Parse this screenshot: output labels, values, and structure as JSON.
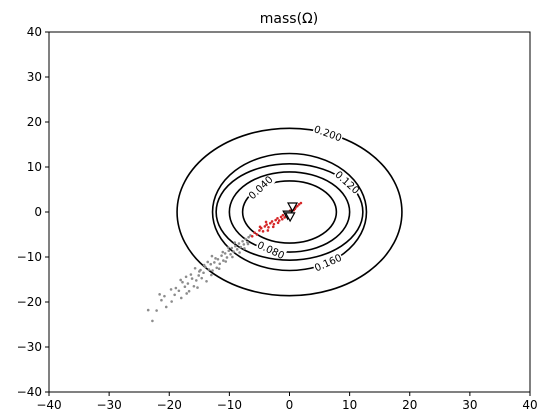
{
  "chart_data": {
    "type": "scatter",
    "title": "mass(Ω)",
    "xlabel": "",
    "ylabel": "",
    "xlim": [
      -40,
      40
    ],
    "ylim": [
      -40,
      40
    ],
    "xticks": [
      "−40",
      "−30",
      "−20",
      "−10",
      "0",
      "10",
      "20",
      "30",
      "40"
    ],
    "yticks": [
      "−40",
      "−30",
      "−20",
      "−10",
      "0",
      "10",
      "20",
      "30",
      "40"
    ],
    "grid": false,
    "contours": [
      {
        "level": "0.040",
        "rx": 7.8,
        "ry": 6.9
      },
      {
        "level": "0.080",
        "rx": 10.0,
        "ry": 8.9
      },
      {
        "level": "0.120",
        "rx": 12.2,
        "ry": 10.7
      },
      {
        "level": "0.160",
        "rx": 12.8,
        "ry": 13.0
      },
      {
        "level": "0.200",
        "rx": 18.7,
        "ry": 18.6
      }
    ],
    "series": [
      {
        "color": "#8c8c8c",
        "points": [
          [
            -23.5,
            -21.8
          ],
          [
            -22.8,
            -24.2
          ],
          [
            -21.3,
            -19.6
          ],
          [
            -20.5,
            -21.1
          ],
          [
            -20.8,
            -18.7
          ],
          [
            -19.6,
            -19.9
          ],
          [
            -19.1,
            -18.4
          ],
          [
            -18.4,
            -17.5
          ],
          [
            -18.9,
            -16.9
          ],
          [
            -18.0,
            -19.1
          ],
          [
            -17.4,
            -16.6
          ],
          [
            -17.8,
            -15.6
          ],
          [
            -16.9,
            -15.9
          ],
          [
            -16.7,
            -17.6
          ],
          [
            -16.2,
            -14.8
          ],
          [
            -15.9,
            -16.5
          ],
          [
            -15.5,
            -15.2
          ],
          [
            -15.1,
            -14.1
          ],
          [
            -15.0,
            -13.2
          ],
          [
            -14.6,
            -14.7
          ],
          [
            -14.3,
            -13.5
          ],
          [
            -14.0,
            -12.2
          ],
          [
            -13.8,
            -15.4
          ],
          [
            -13.4,
            -12.8
          ],
          [
            -13.1,
            -11.6
          ],
          [
            -12.8,
            -13.0
          ],
          [
            -12.5,
            -11.2
          ],
          [
            -12.1,
            -12.4
          ],
          [
            -11.9,
            -10.5
          ],
          [
            -11.6,
            -11.5
          ],
          [
            -11.3,
            -9.7
          ],
          [
            -11.0,
            -10.8
          ],
          [
            -10.7,
            -9.2
          ],
          [
            -10.4,
            -10.1
          ],
          [
            -10.1,
            -8.6
          ],
          [
            -9.8,
            -9.4
          ],
          [
            -9.6,
            -8.0
          ],
          [
            -9.3,
            -8.8
          ],
          [
            -9.0,
            -7.6
          ],
          [
            -8.7,
            -8.3
          ],
          [
            -8.4,
            -7.0
          ],
          [
            -8.1,
            -7.8
          ],
          [
            -7.8,
            -6.5
          ],
          [
            -7.6,
            -7.2
          ],
          [
            -7.3,
            -6.0
          ],
          [
            -7.0,
            -6.7
          ],
          [
            -6.8,
            -5.6
          ],
          [
            -6.5,
            -5.2
          ],
          [
            -12.3,
            -10.3
          ],
          [
            -13.6,
            -11.1
          ],
          [
            -14.8,
            -12.9
          ],
          [
            -16.4,
            -13.9
          ],
          [
            -17.2,
            -14.4
          ],
          [
            -12.9,
            -9.8
          ],
          [
            -11.1,
            -8.9
          ],
          [
            -10.2,
            -7.9
          ],
          [
            -9.1,
            -6.8
          ],
          [
            -14.2,
            -11.8
          ],
          [
            -15.7,
            -12.5
          ],
          [
            -18.1,
            -15.1
          ],
          [
            -19.7,
            -17.2
          ],
          [
            -21.6,
            -18.3
          ],
          [
            -22.1,
            -21.9
          ],
          [
            -17.1,
            -18.1
          ],
          [
            -15.3,
            -16.8
          ],
          [
            -13.0,
            -14.0
          ],
          [
            -11.7,
            -12.6
          ],
          [
            -10.6,
            -11.0
          ],
          [
            -9.5,
            -10.0
          ],
          [
            -8.3,
            -9.0
          ],
          [
            -7.5,
            -8.1
          ],
          [
            -6.9,
            -7.1
          ]
        ]
      },
      {
        "color": "#d62728",
        "points": [
          [
            -6.2,
            -5.4
          ],
          [
            -5.8,
            -4.6
          ],
          [
            -5.4,
            -5.0
          ],
          [
            -5.0,
            -4.1
          ],
          [
            -4.7,
            -3.6
          ],
          [
            -4.4,
            -4.3
          ],
          [
            -4.1,
            -3.2
          ],
          [
            -3.8,
            -2.8
          ],
          [
            -3.5,
            -3.4
          ],
          [
            -3.2,
            -2.5
          ],
          [
            -2.9,
            -2.1
          ],
          [
            -2.6,
            -2.7
          ],
          [
            -2.3,
            -1.8
          ],
          [
            -2.0,
            -1.4
          ],
          [
            -1.7,
            -1.9
          ],
          [
            -1.4,
            -1.1
          ],
          [
            -1.1,
            -0.7
          ],
          [
            -0.8,
            -1.2
          ],
          [
            -0.5,
            -0.4
          ],
          [
            -0.2,
            -0.1
          ],
          [
            0.1,
            0.3
          ],
          [
            0.4,
            0.6
          ],
          [
            0.7,
            0.4
          ],
          [
            1.0,
            1.0
          ],
          [
            1.3,
            1.3
          ],
          [
            1.6,
            1.7
          ],
          [
            1.9,
            2.0
          ],
          [
            -3.6,
            -4.1
          ],
          [
            -2.7,
            -3.3
          ],
          [
            -1.9,
            -2.4
          ],
          [
            -1.2,
            -1.6
          ],
          [
            -0.6,
            -0.9
          ],
          [
            0.2,
            -0.2
          ],
          [
            0.9,
            0.7
          ],
          [
            -4.9,
            -3.3
          ],
          [
            -3.9,
            -2.2
          ]
        ]
      }
    ],
    "markers": [
      {
        "x": 0.5,
        "y": 1.2,
        "symbol": "triangle-down"
      },
      {
        "x": -0.3,
        "y": -0.6,
        "symbol": "triangle-down"
      },
      {
        "x": 0.1,
        "y": -1.0,
        "symbol": "triangle-down"
      }
    ]
  }
}
